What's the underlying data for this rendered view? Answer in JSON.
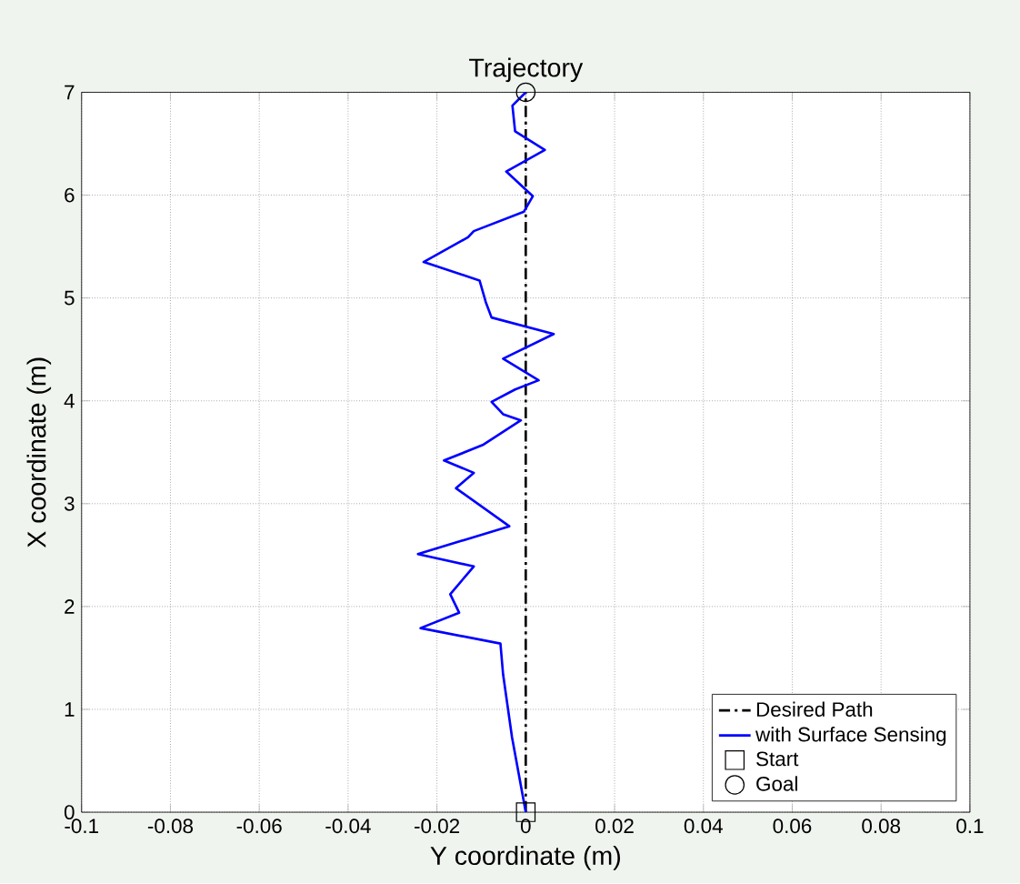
{
  "chart_data": {
    "type": "line",
    "title": "Trajectory",
    "xlabel": "Y coordinate (m)",
    "ylabel": "X coordinate (m)",
    "xlim": [
      -0.1,
      0.1
    ],
    "ylim": [
      0,
      7
    ],
    "xticks": [
      -0.1,
      -0.08,
      -0.06,
      -0.04,
      -0.02,
      0,
      0.02,
      0.04,
      0.06,
      0.08,
      0.1
    ],
    "yticks": [
      0,
      1,
      2,
      3,
      4,
      5,
      6,
      7
    ],
    "grid": true,
    "legend": "bottom right",
    "series": [
      {
        "name": "Desired Path",
        "color": "#000000",
        "line_style": "dashdot",
        "x": [
          0,
          0
        ],
        "values": [
          0,
          7
        ]
      },
      {
        "name": "with Surface Sensing",
        "color": "#0000ff",
        "line_style": "solid",
        "x": [
          0,
          -0.0031,
          -0.0051,
          -0.0057,
          -0.0237,
          -0.015,
          -0.017,
          -0.0117,
          -0.0243,
          -0.0037,
          -0.0157,
          -0.0117,
          -0.0184,
          -0.0097,
          -0.0011,
          -0.0051,
          -0.0077,
          -0.0024,
          0.0029,
          -0.0051,
          0.0063,
          -0.0077,
          -0.009,
          -0.0104,
          -0.023,
          -0.013,
          -0.0117,
          -0.0004,
          0.0016,
          -0.0044,
          0.0043,
          -0.0024,
          -0.003,
          0
        ],
        "values": [
          0,
          0.73,
          1.34,
          1.64,
          1.79,
          1.94,
          2.12,
          2.39,
          2.51,
          2.78,
          3.15,
          3.3,
          3.42,
          3.57,
          3.81,
          3.87,
          3.99,
          4.11,
          4.2,
          4.41,
          4.65,
          4.81,
          4.96,
          5.17,
          5.35,
          5.59,
          5.65,
          5.84,
          5.99,
          6.23,
          6.44,
          6.62,
          6.87,
          7
        ]
      },
      {
        "name": "Start",
        "type": "scatter",
        "color": "#000000",
        "marker": "square",
        "x": [
          0
        ],
        "values": [
          0
        ]
      },
      {
        "name": "Goal",
        "type": "scatter",
        "color": "#000000",
        "marker": "circle",
        "x": [
          0
        ],
        "values": [
          7
        ]
      }
    ]
  }
}
